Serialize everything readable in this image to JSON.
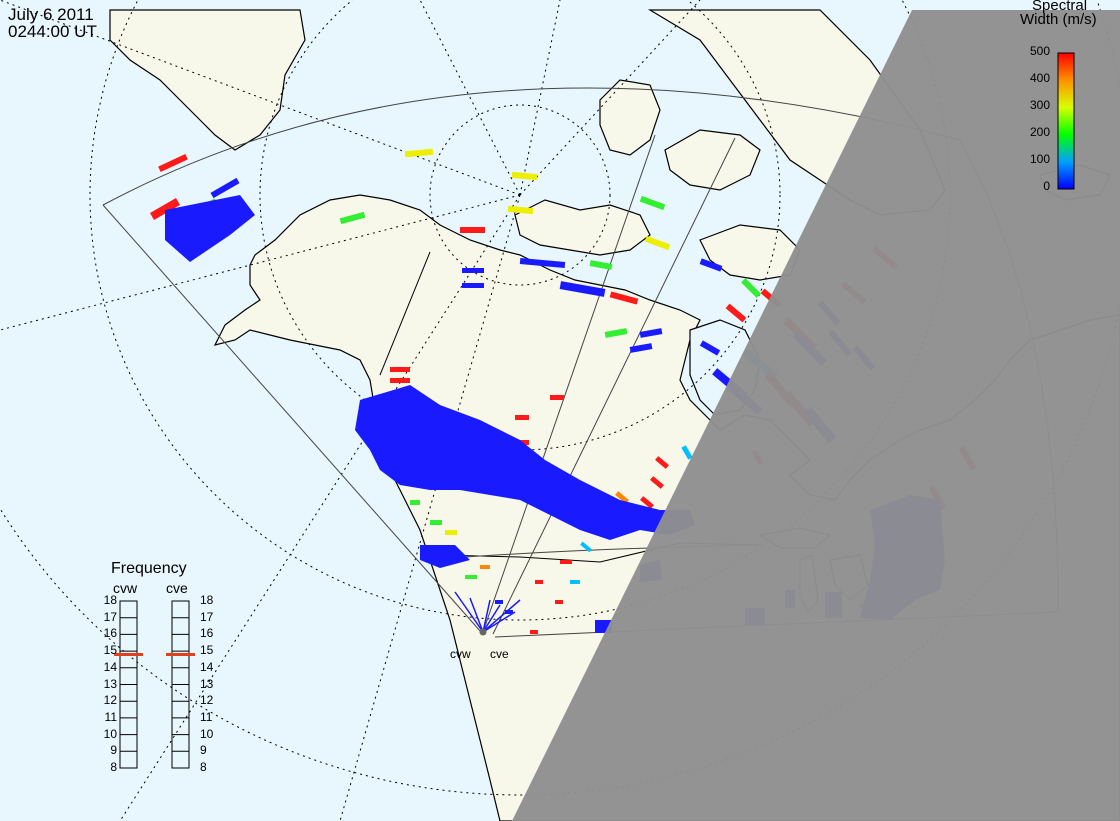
{
  "header": {
    "date": "July  6 2011",
    "time": "0244:00 UT"
  },
  "colorbar": {
    "title_line1": "Spectral",
    "title_line2": "Width (m/s)",
    "ticks": [
      "500",
      "400",
      "300",
      "200",
      "100",
      "0"
    ],
    "min": 0,
    "max": 500
  },
  "frequency_panel": {
    "title": "Frequency",
    "radars": [
      {
        "name": "cvw",
        "frequency_mhz": 14.8
      },
      {
        "name": "cve",
        "frequency_mhz": 14.8
      }
    ],
    "scale": [
      "18",
      "17",
      "16",
      "15",
      "14",
      "13",
      "12",
      "11",
      "10",
      "9",
      "8"
    ],
    "marker_color": "#e0401a"
  },
  "map": {
    "radar_labels": [
      "cvw",
      "cve"
    ],
    "land_color": "#f7f7ea",
    "ocean_color": "#e8f6fd",
    "night_shade_color": "#8f8f8f",
    "grid_style": "dotted"
  }
}
